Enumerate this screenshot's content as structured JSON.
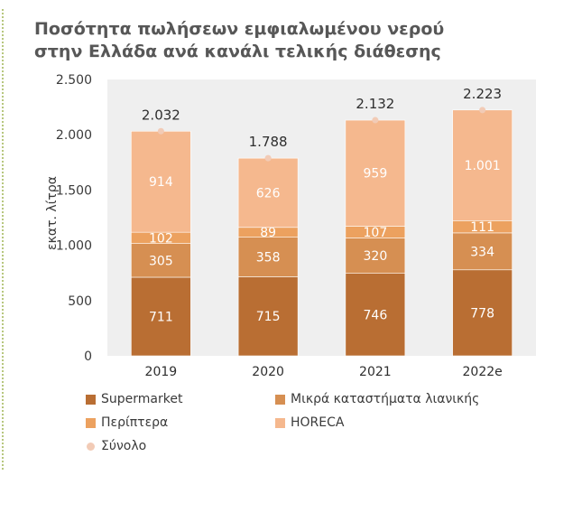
{
  "title_line1": "Ποσότητα πωλήσεων εμφιαλωμένου νερού",
  "title_line2": "στην Ελλάδα ανά κανάλι τελικής διάθεσης",
  "chart_data": {
    "type": "bar",
    "stacked": true,
    "categories": [
      "2019",
      "2020",
      "2021",
      "2022e"
    ],
    "series": [
      {
        "name": "Supermarket",
        "values": [
          711,
          715,
          746,
          778
        ],
        "color": "#b96e33",
        "label_color": "#ffffff"
      },
      {
        "name": "Μικρά καταστήματα λιανικής",
        "values": [
          305,
          358,
          320,
          334
        ],
        "color": "#d68f52",
        "label_color": "#ffffff"
      },
      {
        "name": "Περίπτερα",
        "values": [
          102,
          89,
          107,
          111
        ],
        "color": "#eca15f",
        "label_color": "#ffffff"
      },
      {
        "name": "HORECA",
        "values": [
          914,
          626,
          959,
          1001
        ],
        "color": "#f5b88e",
        "label_color": "#ffffff"
      }
    ],
    "total": {
      "name": "Σύνολο",
      "values": [
        2032,
        1788,
        2132,
        2223
      ],
      "labels": [
        "2.032",
        "1.788",
        "2.132",
        "2.223"
      ],
      "color": "#f2cbb6"
    },
    "value_labels": [
      [
        "711",
        "715",
        "746",
        "778"
      ],
      [
        "305",
        "358",
        "320",
        "334"
      ],
      [
        "102",
        "89",
        "107",
        "111"
      ],
      [
        "914",
        "626",
        "959",
        "1.001"
      ]
    ],
    "ylabel": "εκατ. λίτρα",
    "ylim": [
      0,
      2500
    ],
    "yticks": [
      0,
      500,
      1000,
      1500,
      2000,
      2500
    ],
    "ytick_labels": [
      "0",
      "500",
      "1.000",
      "1.500",
      "2.000",
      "2.500"
    ],
    "plot_background": "#efefef",
    "grid": false,
    "legend_position": "bottom"
  }
}
